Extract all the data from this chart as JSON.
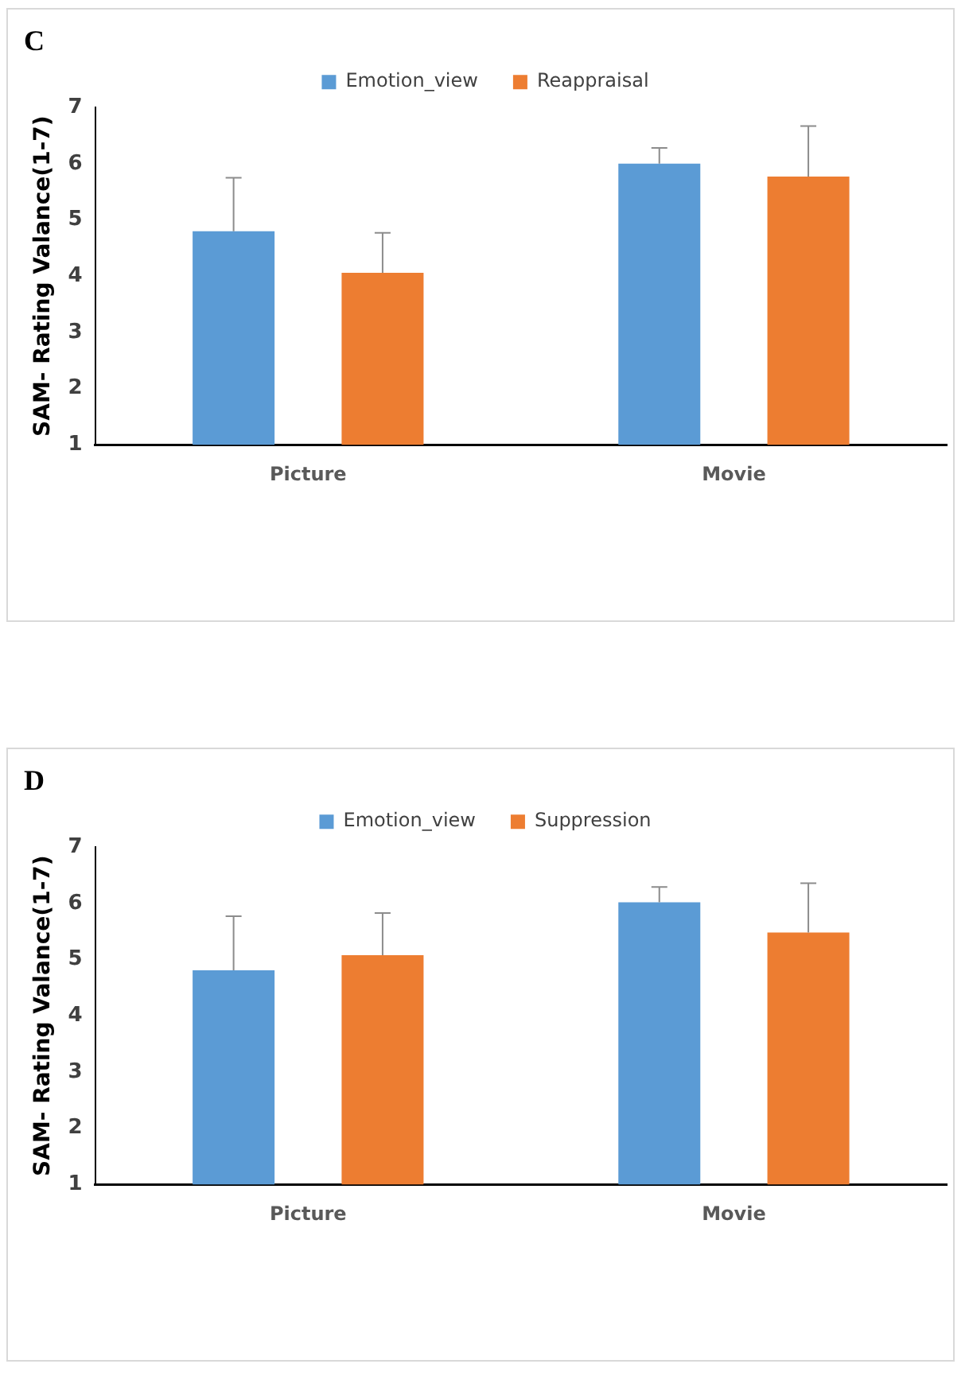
{
  "chart_data": [
    {
      "type": "bar",
      "title": "C",
      "ylabel": "SAM- Rating Valance(1-7)",
      "categories": [
        "Picture",
        "Movie"
      ],
      "ylim": [
        1,
        7
      ],
      "yticks": [
        1,
        2,
        3,
        4,
        5,
        6,
        7
      ],
      "grid": false,
      "legend": "top",
      "series": [
        {
          "name": "Emotion_view",
          "color": "#5b9bd5",
          "values": [
            4.8,
            6.0
          ],
          "errors": [
            [
              4.8,
              5.75
            ],
            [
              6.0,
              6.28
            ]
          ]
        },
        {
          "name": "Reappraisal",
          "color": "#ed7d31",
          "values": [
            4.06,
            5.77
          ],
          "errors": [
            [
              4.06,
              4.77
            ],
            [
              5.77,
              6.67
            ]
          ]
        }
      ]
    },
    {
      "type": "bar",
      "title": "D",
      "ylabel": "SAM- Rating Valance(1-7)",
      "categories": [
        "Picture",
        "Movie"
      ],
      "ylim": [
        1,
        7
      ],
      "yticks": [
        1,
        2,
        3,
        4,
        5,
        6,
        7
      ],
      "grid": false,
      "legend": "top",
      "series": [
        {
          "name": "Emotion_view",
          "color": "#5b9bd5",
          "values": [
            4.81,
            6.02
          ],
          "errors": [
            [
              4.81,
              5.77
            ],
            [
              6.02,
              6.29
            ]
          ]
        },
        {
          "name": "Suppression",
          "color": "#ed7d31",
          "values": [
            5.08,
            5.48
          ],
          "errors": [
            [
              5.08,
              5.83
            ],
            [
              5.48,
              6.36
            ]
          ]
        }
      ]
    }
  ]
}
